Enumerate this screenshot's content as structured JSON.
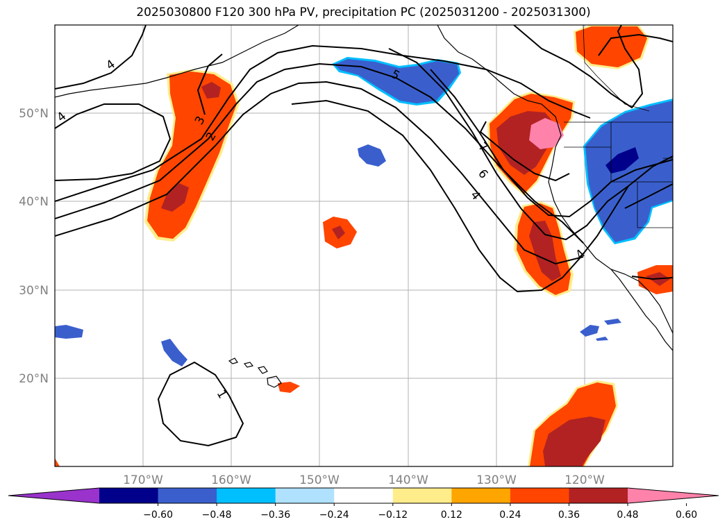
{
  "title": "2025030800 F120 300 hPa PV, precipitation PC (2025031200 - 2025031300)",
  "lat_labels": [
    "50°N",
    "40°N",
    "30°N",
    "20°N"
  ],
  "lon_labels": [
    "170°W",
    "160°W",
    "150°W",
    "140°W",
    "130°W",
    "120°W"
  ],
  "contour_labels": [
    "4",
    "4",
    "3",
    "2",
    "5",
    "7",
    "6",
    "4",
    "4",
    "1"
  ],
  "colorbar": {
    "ticks": [
      "−0.60",
      "−0.48",
      "−0.36",
      "−0.24",
      "−0.12",
      "0.12",
      "0.24",
      "0.36",
      "0.48",
      "0.60"
    ],
    "colors": [
      "#9933cc",
      "#00008b",
      "#3a5fcd",
      "#00bfff",
      "#b0e2ff",
      "#ffffff",
      "#ffec8b",
      "#ffa500",
      "#ff4500",
      "#b22222",
      "#ff82ab"
    ]
  },
  "colors": {
    "pos_orange": "#ff4500",
    "pos_red": "#b22222",
    "pos_pink": "#ff82ab",
    "pos_yellow": "#ffec8b",
    "neg_blue": "#3a5fcd",
    "neg_navy": "#00008b",
    "neg_cyan": "#00bfff"
  }
}
